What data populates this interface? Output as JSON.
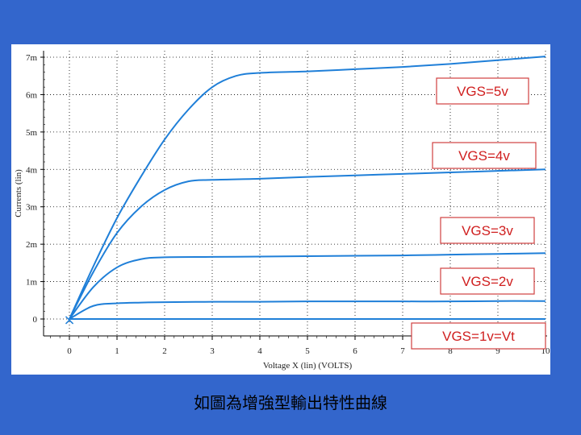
{
  "caption": "如圖為增強型輸出特性曲線",
  "chart_data": {
    "type": "line",
    "xlabel": "Voltage X (lin) (VOLTS)",
    "ylabel": "Currents (lin)",
    "xlim": [
      0,
      10
    ],
    "ylim": [
      -0.3,
      7.2
    ],
    "x_ticks": [
      "0",
      "1",
      "2",
      "3",
      "4",
      "5",
      "6",
      "7",
      "8",
      "9",
      "10"
    ],
    "y_ticks": [
      {
        "value": 7,
        "label": "7m"
      },
      {
        "value": 6,
        "label": "6m"
      },
      {
        "value": 5,
        "label": "5m"
      },
      {
        "value": 4,
        "label": "4m"
      },
      {
        "value": 3,
        "label": "3m"
      },
      {
        "value": 2,
        "label": "2m"
      },
      {
        "value": 1,
        "label": "1m"
      },
      {
        "value": 0,
        "label": "0"
      }
    ],
    "grid": true,
    "origin_marker": "×",
    "series": [
      {
        "name": "VGS=5v",
        "x": [
          0,
          0.5,
          1,
          1.5,
          2,
          2.5,
          3,
          3.5,
          4,
          5,
          6,
          7,
          8,
          9,
          10
        ],
        "values": [
          0,
          1.4,
          2.7,
          3.8,
          4.8,
          5.6,
          6.2,
          6.5,
          6.58,
          6.62,
          6.68,
          6.74,
          6.82,
          6.92,
          7.02
        ]
      },
      {
        "name": "VGS=4v",
        "x": [
          0,
          0.5,
          1,
          1.5,
          2,
          2.5,
          3,
          4,
          5,
          6,
          7,
          8,
          9,
          10
        ],
        "values": [
          0,
          1.25,
          2.3,
          3.0,
          3.45,
          3.68,
          3.72,
          3.75,
          3.8,
          3.84,
          3.88,
          3.92,
          3.96,
          4.0
        ]
      },
      {
        "name": "VGS=3v",
        "x": [
          0,
          0.5,
          1,
          1.5,
          2,
          3,
          4,
          5,
          6,
          7,
          8,
          9,
          10
        ],
        "values": [
          0,
          0.85,
          1.38,
          1.6,
          1.65,
          1.66,
          1.67,
          1.68,
          1.69,
          1.7,
          1.72,
          1.74,
          1.76
        ]
      },
      {
        "name": "VGS=2v",
        "x": [
          0,
          0.5,
          1,
          1.5,
          2,
          3,
          4,
          5,
          6,
          7,
          8,
          9,
          10
        ],
        "values": [
          0,
          0.35,
          0.42,
          0.44,
          0.45,
          0.46,
          0.46,
          0.47,
          0.47,
          0.47,
          0.47,
          0.48,
          0.48
        ]
      },
      {
        "name": "VGS=1v=Vt",
        "x": [
          0,
          10
        ],
        "values": [
          0,
          0
        ]
      }
    ],
    "annotations": [
      "VGS=5v",
      "VGS=4v",
      "VGS=3v",
      "VGS=2v",
      "VGS=1v=Vt"
    ]
  }
}
